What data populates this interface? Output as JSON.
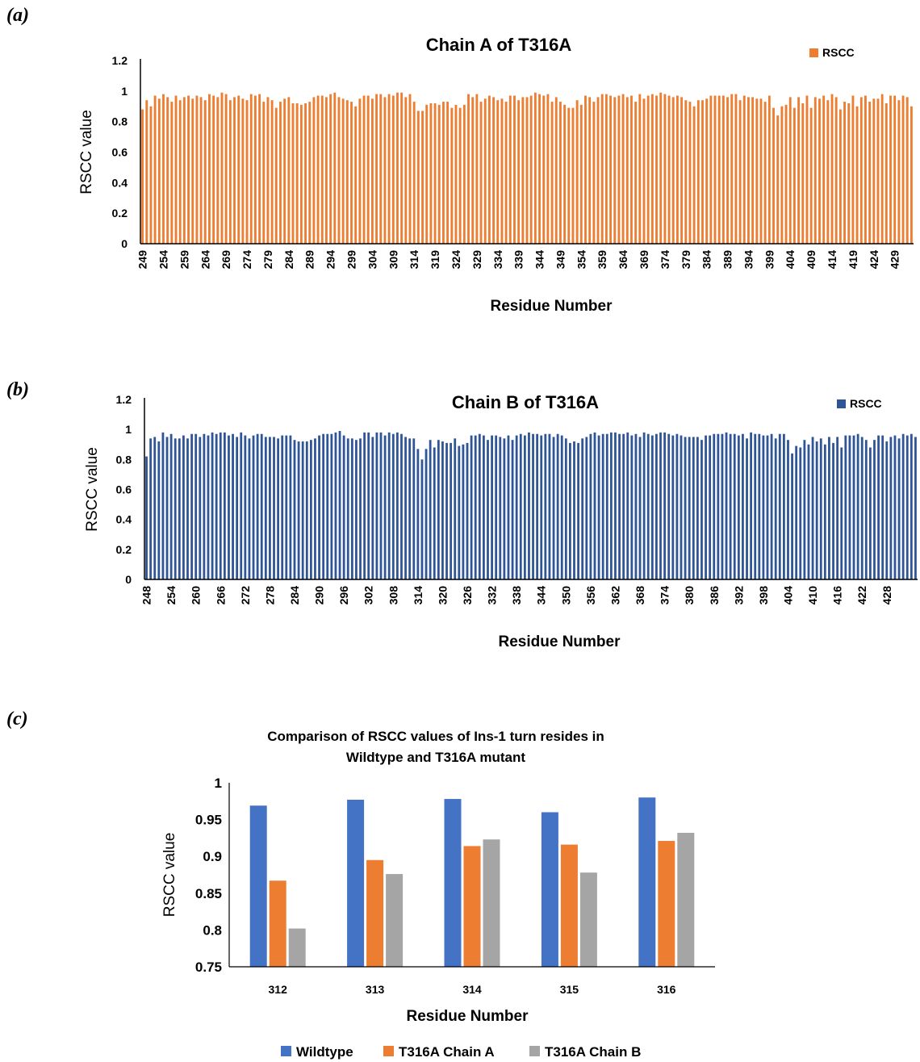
{
  "panels": {
    "a": "(a)",
    "b": "(b)",
    "c": "(c)"
  },
  "chart_data": [
    {
      "id": "chainA",
      "type": "bar",
      "title": "Chain A of T316A",
      "xlabel": "Residue Number",
      "ylabel": "RSCC value",
      "ylim": [
        0,
        1.2
      ],
      "yticks": [
        0,
        0.2,
        0.4,
        0.6,
        0.8,
        1,
        1.2
      ],
      "x_start": 249,
      "x_end": 433,
      "tick_start": 249,
      "tick_step": 5,
      "tick_last": 429,
      "color": "#ED7D31",
      "legend": [
        {
          "name": "RSCC",
          "color": "#ED7D31"
        }
      ],
      "legend_position": "top-right",
      "grid": false,
      "values": [
        0.88,
        0.94,
        0.9,
        0.97,
        0.95,
        0.98,
        0.96,
        0.93,
        0.97,
        0.94,
        0.96,
        0.97,
        0.95,
        0.97,
        0.96,
        0.94,
        0.98,
        0.97,
        0.96,
        0.99,
        0.98,
        0.94,
        0.96,
        0.97,
        0.95,
        0.94,
        0.98,
        0.97,
        0.98,
        0.93,
        0.96,
        0.94,
        0.89,
        0.93,
        0.95,
        0.96,
        0.92,
        0.92,
        0.91,
        0.92,
        0.93,
        0.96,
        0.97,
        0.97,
        0.96,
        0.98,
        0.99,
        0.96,
        0.95,
        0.94,
        0.93,
        0.9,
        0.95,
        0.97,
        0.97,
        0.95,
        0.98,
        0.98,
        0.96,
        0.98,
        0.97,
        0.99,
        0.99,
        0.96,
        0.98,
        0.93,
        0.87,
        0.87,
        0.91,
        0.92,
        0.92,
        0.91,
        0.93,
        0.93,
        0.89,
        0.91,
        0.89,
        0.91,
        0.98,
        0.96,
        0.98,
        0.93,
        0.95,
        0.97,
        0.96,
        0.94,
        0.95,
        0.93,
        0.97,
        0.97,
        0.94,
        0.96,
        0.96,
        0.97,
        0.99,
        0.98,
        0.97,
        0.98,
        0.93,
        0.96,
        0.93,
        0.91,
        0.89,
        0.89,
        0.94,
        0.91,
        0.97,
        0.96,
        0.93,
        0.96,
        0.98,
        0.98,
        0.97,
        0.96,
        0.97,
        0.98,
        0.96,
        0.97,
        0.93,
        0.98,
        0.95,
        0.97,
        0.98,
        0.97,
        0.99,
        0.98,
        0.97,
        0.96,
        0.97,
        0.96,
        0.94,
        0.93,
        0.9,
        0.94,
        0.94,
        0.95,
        0.97,
        0.97,
        0.97,
        0.97,
        0.96,
        0.98,
        0.98,
        0.94,
        0.97,
        0.96,
        0.96,
        0.95,
        0.95,
        0.93,
        0.97,
        0.89,
        0.84,
        0.9,
        0.91,
        0.96,
        0.89,
        0.96,
        0.92,
        0.97,
        0.89,
        0.96,
        0.95,
        0.97,
        0.94,
        0.98,
        0.96,
        0.88,
        0.93,
        0.92,
        0.97,
        0.9,
        0.96,
        0.97,
        0.93,
        0.95,
        0.95,
        0.98,
        0.92,
        0.97,
        0.97,
        0.94,
        0.97,
        0.96,
        0.9
      ]
    },
    {
      "id": "chainB",
      "type": "bar",
      "title": "Chain B of T316A",
      "xlabel": "Residue Number",
      "ylabel": "RSCC value",
      "ylim": [
        0,
        1.2
      ],
      "yticks": [
        0,
        0.2,
        0.4,
        0.6,
        0.8,
        1,
        1.2
      ],
      "x_start": 248,
      "x_end": 432,
      "tick_start": 248,
      "tick_step": 6,
      "tick_last": 428,
      "color": "#2F5597",
      "legend": [
        {
          "name": "RSCC",
          "color": "#2F5597"
        }
      ],
      "legend_position": "top-right",
      "grid": false,
      "values": [
        0.82,
        0.94,
        0.95,
        0.92,
        0.98,
        0.95,
        0.97,
        0.94,
        0.94,
        0.96,
        0.94,
        0.97,
        0.97,
        0.95,
        0.97,
        0.96,
        0.98,
        0.97,
        0.98,
        0.98,
        0.96,
        0.97,
        0.95,
        0.98,
        0.96,
        0.94,
        0.96,
        0.97,
        0.97,
        0.95,
        0.95,
        0.95,
        0.94,
        0.96,
        0.96,
        0.96,
        0.93,
        0.92,
        0.92,
        0.92,
        0.93,
        0.94,
        0.96,
        0.97,
        0.97,
        0.97,
        0.98,
        0.99,
        0.96,
        0.94,
        0.94,
        0.93,
        0.94,
        0.98,
        0.98,
        0.95,
        0.98,
        0.98,
        0.96,
        0.98,
        0.97,
        0.98,
        0.97,
        0.95,
        0.94,
        0.94,
        0.87,
        0.8,
        0.87,
        0.93,
        0.88,
        0.93,
        0.92,
        0.91,
        0.91,
        0.94,
        0.89,
        0.9,
        0.91,
        0.96,
        0.96,
        0.97,
        0.96,
        0.93,
        0.96,
        0.96,
        0.95,
        0.94,
        0.96,
        0.93,
        0.96,
        0.97,
        0.96,
        0.98,
        0.97,
        0.97,
        0.96,
        0.97,
        0.97,
        0.95,
        0.97,
        0.96,
        0.94,
        0.91,
        0.92,
        0.91,
        0.94,
        0.95,
        0.97,
        0.98,
        0.96,
        0.97,
        0.97,
        0.98,
        0.98,
        0.97,
        0.97,
        0.98,
        0.96,
        0.97,
        0.95,
        0.98,
        0.97,
        0.96,
        0.97,
        0.98,
        0.98,
        0.97,
        0.96,
        0.97,
        0.96,
        0.95,
        0.95,
        0.95,
        0.95,
        0.93,
        0.96,
        0.96,
        0.97,
        0.97,
        0.97,
        0.98,
        0.97,
        0.97,
        0.96,
        0.97,
        0.94,
        0.98,
        0.97,
        0.97,
        0.96,
        0.96,
        0.97,
        0.94,
        0.97,
        0.97,
        0.93,
        0.84,
        0.89,
        0.88,
        0.93,
        0.9,
        0.95,
        0.92,
        0.94,
        0.9,
        0.95,
        0.91,
        0.95,
        0.88,
        0.96,
        0.96,
        0.96,
        0.97,
        0.95,
        0.93,
        0.88,
        0.93,
        0.96,
        0.96,
        0.92,
        0.95,
        0.96,
        0.94,
        0.97,
        0.96,
        0.97,
        0.95
      ]
    },
    {
      "id": "comparison",
      "type": "bar",
      "title": [
        "Comparison of RSCC values of Ins-1 turn resides in",
        "Wildtype and T316A mutant"
      ],
      "xlabel": "Residue Number",
      "ylabel": "RSCC value",
      "ylim": [
        0.75,
        1
      ],
      "yticks": [
        0.75,
        0.8,
        0.85,
        0.9,
        0.95,
        1
      ],
      "categories": [
        "312",
        "313",
        "314",
        "315",
        "316"
      ],
      "legend_position": "bottom",
      "grid": false,
      "series": [
        {
          "name": "Wildtype",
          "color": "#4472C4",
          "values": [
            0.969,
            0.977,
            0.978,
            0.96,
            0.98
          ]
        },
        {
          "name": "T316A Chain A",
          "color": "#ED7D31",
          "values": [
            0.867,
            0.895,
            0.914,
            0.916,
            0.921
          ]
        },
        {
          "name": "T316A Chain B",
          "color": "#A5A5A5",
          "values": [
            0.802,
            0.876,
            0.923,
            0.878,
            0.932
          ]
        }
      ]
    }
  ]
}
